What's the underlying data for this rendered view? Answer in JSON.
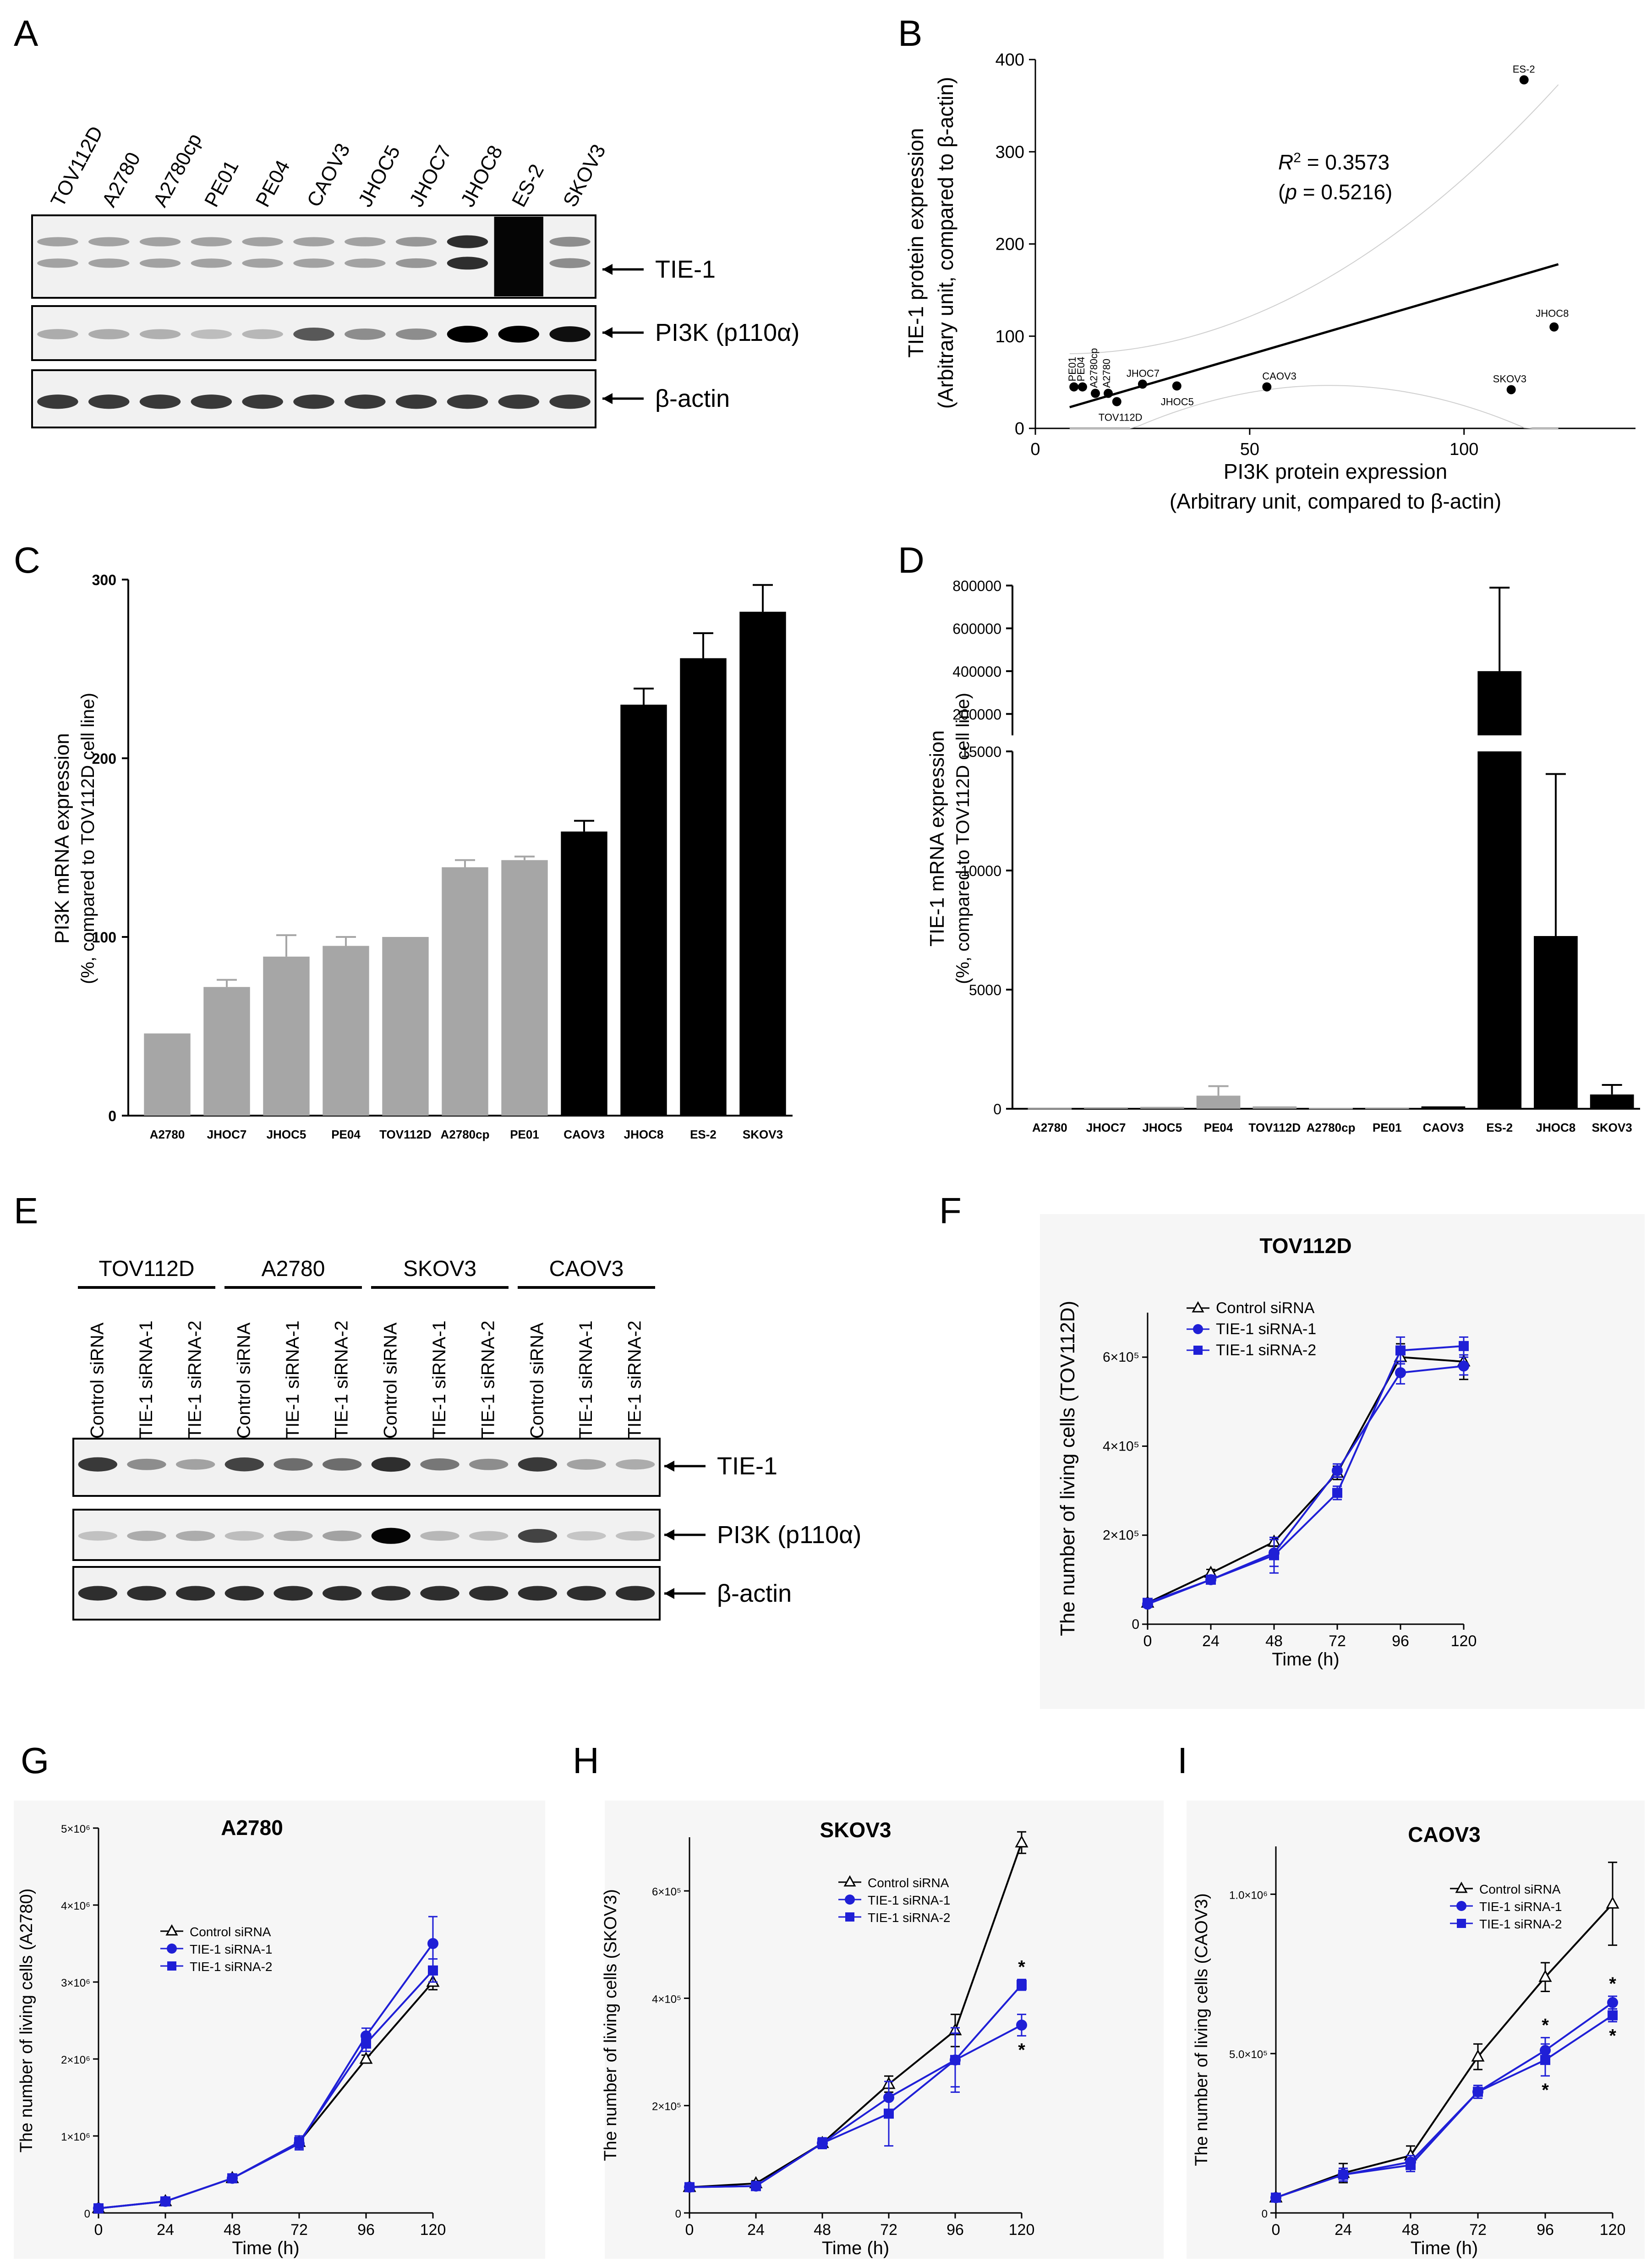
{
  "panels": {
    "A": {
      "label": "A",
      "lanes": [
        "TOV112D",
        "A2780",
        "A2780cp",
        "PE01",
        "PE04",
        "CAOV3",
        "JHOC5",
        "JHOC7",
        "JHOC8",
        "ES-2",
        "SKOV3"
      ],
      "blots": [
        "TIE-1",
        "PI3K (p110α)",
        "β-actin"
      ]
    },
    "B": {
      "label": "B"
    },
    "C": {
      "label": "C"
    },
    "D": {
      "label": "D"
    },
    "E": {
      "label": "E",
      "groups": [
        "TOV112D",
        "A2780",
        "SKOV3",
        "CAOV3"
      ],
      "lanes": [
        "Control siRNA",
        "TIE-1 siRNA-1",
        "TIE-1 siRNA-2"
      ],
      "blots": [
        "TIE-1",
        "PI3K (p110α)",
        "β-actin"
      ]
    },
    "F": {
      "label": "F"
    },
    "G": {
      "label": "G"
    },
    "H": {
      "label": "H"
    },
    "I": {
      "label": "I"
    }
  },
  "colors": {
    "gray_bar": "#a6a6a6",
    "black_bar": "#000000",
    "blue": "#1f1fd6",
    "navy": "#1c1c9e"
  },
  "chart_data": [
    {
      "id": "B",
      "type": "scatter",
      "xlabel": "PI3K protein expression",
      "xlabel2": "(Arbitrary unit, compared to β-actin)",
      "ylabel": "TIE-1 protein expression",
      "ylabel2": "(Arbitrary unit, compared to β-actin)",
      "xlim": [
        0,
        140
      ],
      "ylim": [
        0,
        400
      ],
      "xticks": [
        0,
        50,
        100
      ],
      "yticks": [
        0,
        100,
        200,
        300,
        400
      ],
      "annotation_r2": "= 0.3573",
      "annotation_p": "= 0.5216)",
      "points": [
        {
          "label": "PE01",
          "x": 9,
          "y": 45
        },
        {
          "label": "PE04",
          "x": 11,
          "y": 45
        },
        {
          "label": "A2780cp",
          "x": 14,
          "y": 38
        },
        {
          "label": "A2780",
          "x": 17,
          "y": 38
        },
        {
          "label": "TOV112D",
          "x": 19,
          "y": 29
        },
        {
          "label": "JHOC7",
          "x": 25,
          "y": 48
        },
        {
          "label": "JHOC5",
          "x": 33,
          "y": 46
        },
        {
          "label": "CAOV3",
          "x": 54,
          "y": 45
        },
        {
          "label": "SKOV3",
          "x": 111,
          "y": 42
        },
        {
          "label": "JHOC8",
          "x": 121,
          "y": 110
        },
        {
          "label": "ES-2",
          "x": 114,
          "y": 378
        }
      ],
      "fit": [
        [
          8,
          23
        ],
        [
          122,
          178
        ]
      ]
    },
    {
      "id": "C",
      "type": "bar",
      "ylabel": "PI3K mRNA expression",
      "ylabel2": "(%, compared to TOV112D cell line)",
      "ylim": [
        0,
        300
      ],
      "yticks": [
        0,
        100,
        200,
        300
      ],
      "categories": [
        "A2780",
        "JHOC7",
        "JHOC5",
        "PE04",
        "TOV112D",
        "A2780cp",
        "PE01",
        "CAOV3",
        "JHOC8",
        "ES-2",
        "SKOV3"
      ],
      "values": [
        46,
        72,
        89,
        95,
        100,
        139,
        143,
        159,
        230,
        256,
        282
      ],
      "errors": [
        0,
        4,
        12,
        5,
        0,
        4,
        2,
        6,
        9,
        14,
        15
      ],
      "bar_colors": [
        "gray",
        "gray",
        "gray",
        "gray",
        "gray",
        "gray",
        "gray",
        "black",
        "black",
        "black",
        "black"
      ]
    },
    {
      "id": "D",
      "type": "bar",
      "ylabel": "TIE-1 mRNA expression",
      "ylabel2": "(%, compared to TOV112D cell line)",
      "lower_yticks": [
        0,
        5000,
        10000,
        15000
      ],
      "upper_ticks": [
        "200000",
        "400000",
        "600000",
        "800000"
      ],
      "categories": [
        "A2780",
        "JHOC7",
        "JHOC5",
        "PE04",
        "TOV112D",
        "A2780cp",
        "PE01",
        "CAOV3",
        "ES-2",
        "JHOC8",
        "SKOV3"
      ],
      "values": [
        30,
        60,
        80,
        550,
        100,
        40,
        50,
        100,
        400000,
        7250,
        600
      ],
      "errors": [
        0,
        0,
        0,
        400,
        0,
        0,
        0,
        0,
        390000,
        6800,
        400
      ],
      "bar_colors": [
        "gray",
        "gray",
        "gray",
        "gray",
        "gray",
        "gray",
        "gray",
        "black",
        "black",
        "black",
        "black"
      ]
    },
    {
      "id": "F",
      "type": "line",
      "title": "TOV112D",
      "xlabel": "Time (h)",
      "ylabel": "The number of living cells (TOV112D)",
      "xticks": [
        0,
        24,
        48,
        72,
        96,
        120
      ],
      "ylim": [
        0,
        700000
      ],
      "ytick_labels": [
        "0",
        "2×10⁵",
        "4×10⁵",
        "6×10⁵"
      ],
      "series": [
        {
          "name": "Control siRNA",
          "y": [
            48000,
            115000,
            185000,
            340000,
            600000,
            590000
          ],
          "err": [
            5000,
            8000,
            10000,
            15000,
            30000,
            40000
          ]
        },
        {
          "name": "TIE-1 siRNA-1",
          "y": [
            45000,
            100000,
            160000,
            345000,
            565000,
            580000
          ],
          "err": [
            5000,
            8000,
            30000,
            15000,
            25000,
            20000
          ]
        },
        {
          "name": "TIE-1 siRNA-2",
          "y": [
            48000,
            100000,
            155000,
            295000,
            615000,
            625000
          ],
          "err": [
            5000,
            8000,
            40000,
            15000,
            30000,
            20000
          ]
        }
      ]
    },
    {
      "id": "G",
      "type": "line",
      "title": "A2780",
      "xlabel": "Time (h)",
      "ylabel": "The number of living cells (A2780)",
      "xticks": [
        0,
        24,
        48,
        72,
        96,
        120
      ],
      "ylim": [
        0,
        5000000
      ],
      "ytick_labels": [
        "0",
        "1×10⁶",
        "2×10⁶",
        "3×10⁶",
        "4×10⁶",
        "5×10⁶"
      ],
      "series": [
        {
          "name": "Control siRNA",
          "y": [
            60000,
            150000,
            450000,
            920000,
            2000000,
            3000000
          ],
          "err": [
            10000,
            20000,
            40000,
            80000,
            50000,
            100000
          ]
        },
        {
          "name": "TIE-1 siRNA-1",
          "y": [
            60000,
            150000,
            450000,
            900000,
            2300000,
            3500000
          ],
          "err": [
            10000,
            20000,
            40000,
            80000,
            100000,
            350000
          ]
        },
        {
          "name": "TIE-1 siRNA-2",
          "y": [
            60000,
            150000,
            450000,
            920000,
            2200000,
            3150000
          ],
          "err": [
            10000,
            20000,
            40000,
            80000,
            100000,
            150000
          ]
        }
      ]
    },
    {
      "id": "H",
      "type": "line",
      "title": "SKOV3",
      "xlabel": "Time (h)",
      "ylabel": "The number of living cells (SKOV3)",
      "xticks": [
        0,
        24,
        48,
        72,
        96,
        120
      ],
      "ylim": [
        0,
        700000
      ],
      "ytick_labels": [
        "0",
        "2×10⁵",
        "4×10⁵",
        "6×10⁵"
      ],
      "star": "*",
      "series": [
        {
          "name": "Control siRNA",
          "y": [
            48000,
            55000,
            130000,
            240000,
            340000,
            690000
          ],
          "err": [
            5000,
            5000,
            10000,
            15000,
            30000,
            20000
          ]
        },
        {
          "name": "TIE-1 siRNA-1",
          "y": [
            48000,
            50000,
            130000,
            215000,
            285000,
            350000
          ],
          "err": [
            5000,
            5000,
            10000,
            30000,
            50000,
            20000
          ]
        },
        {
          "name": "TIE-1 siRNA-2",
          "y": [
            48000,
            50000,
            130000,
            185000,
            285000,
            425000
          ],
          "err": [
            5000,
            5000,
            10000,
            60000,
            60000,
            10000
          ]
        }
      ]
    },
    {
      "id": "I",
      "type": "line",
      "title": "CAOV3",
      "xlabel": "Time (h)",
      "ylabel": "The number of living cells (CAOV3)",
      "xticks": [
        0,
        24,
        48,
        72,
        96,
        120
      ],
      "ylim": [
        0,
        1150000
      ],
      "ytick_labels": [
        "0",
        "5.0×10⁵",
        "1.0×10⁶"
      ],
      "star": "*",
      "series": [
        {
          "name": "Control siRNA",
          "y": [
            48000,
            125000,
            180000,
            490000,
            740000,
            970000
          ],
          "err": [
            5000,
            30000,
            30000,
            40000,
            45000,
            130000
          ]
        },
        {
          "name": "TIE-1 siRNA-1",
          "y": [
            48000,
            120000,
            160000,
            380000,
            510000,
            660000
          ],
          "err": [
            5000,
            20000,
            20000,
            20000,
            40000,
            20000
          ]
        },
        {
          "name": "TIE-1 siRNA-2",
          "y": [
            48000,
            120000,
            150000,
            380000,
            480000,
            620000
          ],
          "err": [
            5000,
            20000,
            20000,
            20000,
            50000,
            20000
          ]
        }
      ]
    }
  ]
}
